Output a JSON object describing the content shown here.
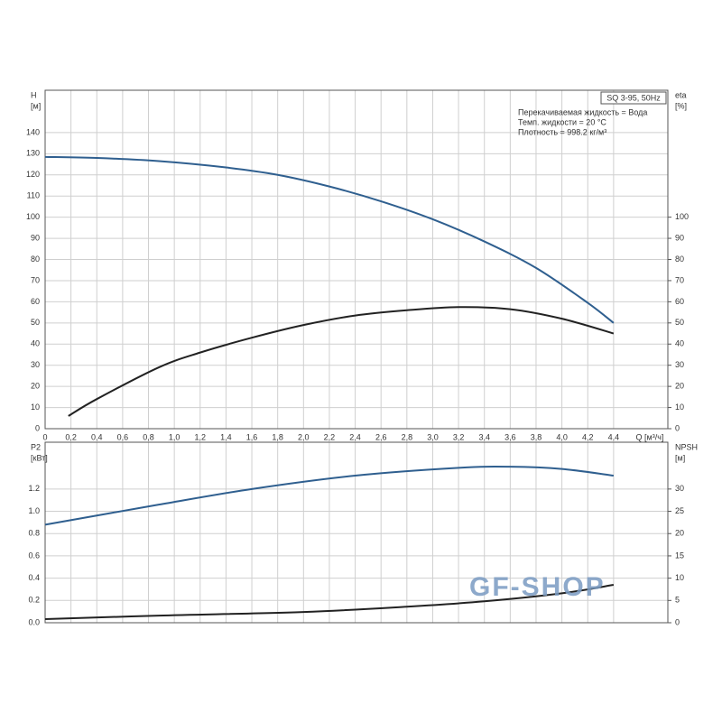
{
  "chart_data": [
    {
      "type": "line",
      "annotations": [
        "SQ 3-95, 50Hz",
        "Перекачиваемая жидкость = Вода",
        "Темп. жидкости = 20 °C",
        "Плотность = 998.2 кг/м³"
      ],
      "x_label": "Q [м³/ч]",
      "y_label": [
        "H",
        "[м]"
      ],
      "y2_label": [
        "eta",
        "[%]"
      ],
      "xlim": [
        0,
        4.82
      ],
      "xticks": [
        0,
        {
          "value": 0.2,
          "label": "0,2"
        },
        {
          "value": 0.4,
          "label": "0,4"
        },
        {
          "value": 0.6,
          "label": "0,6"
        },
        {
          "value": 0.8,
          "label": "0,8"
        },
        {
          "value": 1.0,
          "label": "1,0"
        },
        {
          "value": 1.2,
          "label": "1,2"
        },
        {
          "value": 1.4,
          "label": "1,4"
        },
        {
          "value": 1.6,
          "label": "1,6"
        },
        {
          "value": 1.8,
          "label": "1,8"
        },
        {
          "value": 2.0,
          "label": "2,0"
        },
        {
          "value": 2.2,
          "label": "2,2"
        },
        {
          "value": 2.4,
          "label": "2,4"
        },
        {
          "value": 2.6,
          "label": "2,6"
        },
        {
          "value": 2.8,
          "label": "2,8"
        },
        {
          "value": 3.0,
          "label": "3,0"
        },
        {
          "value": 3.2,
          "label": "3,2"
        },
        {
          "value": 3.4,
          "label": "3,4"
        },
        {
          "value": 3.6,
          "label": "3,6"
        },
        {
          "value": 3.8,
          "label": "3,8"
        },
        {
          "value": 4.0,
          "label": "4,0"
        },
        {
          "value": 4.2,
          "label": "4,2"
        },
        {
          "value": 4.4,
          "label": "4,4"
        }
      ],
      "ylim": [
        0,
        160
      ],
      "yticks": [
        0,
        10,
        20,
        30,
        40,
        50,
        60,
        70,
        80,
        90,
        100,
        110,
        120,
        130,
        140
      ],
      "y2lim": [
        0,
        160
      ],
      "y2ticks": [
        0,
        10,
        20,
        30,
        40,
        50,
        60,
        70,
        80,
        90,
        100
      ],
      "grid": true,
      "series": [
        {
          "color": "#2f5f8f",
          "x": [
            0,
            0.4,
            0.88,
            1.4,
            1.8,
            2.2,
            2.6,
            3.0,
            3.4,
            3.8,
            4.2,
            4.4
          ],
          "values": [
            128.5,
            128,
            126.5,
            123.5,
            120,
            114.5,
            107.5,
            99,
            88.5,
            76,
            59.5,
            50
          ]
        },
        {
          "color": "#222222",
          "axis": "y2",
          "x": [
            0.18,
            0.4,
            0.88,
            1.2,
            1.6,
            2.0,
            2.4,
            2.8,
            3.2,
            3.6,
            4.0,
            4.4
          ],
          "values": [
            6,
            14,
            29,
            36,
            43,
            49,
            53.5,
            56,
            57.5,
            56.5,
            52,
            45
          ]
        }
      ]
    },
    {
      "type": "line",
      "y_label": [
        "P2",
        "[кВт]"
      ],
      "y2_label": [
        "NPSH",
        "[м]"
      ],
      "xlim": [
        0,
        4.82
      ],
      "ylim": [
        0,
        1.62
      ],
      "yticks": [
        {
          "value": 0,
          "label": "0.0"
        },
        0.2,
        0.4,
        0.6,
        0.8,
        {
          "value": 1.0,
          "label": "1.0"
        },
        1.2
      ],
      "y2lim": [
        0,
        40.5
      ],
      "y2ticks": [
        0,
        5,
        10,
        15,
        20,
        25,
        30
      ],
      "grid": true,
      "series": [
        {
          "color": "#2f5f8f",
          "x": [
            0,
            0.88,
            1.6,
            2.4,
            3.2,
            3.6,
            4.0,
            4.4
          ],
          "values": [
            0.88,
            1.06,
            1.2,
            1.32,
            1.39,
            1.4,
            1.38,
            1.32
          ]
        },
        {
          "color": "#222222",
          "axis": "y2",
          "x": [
            0,
            0.88,
            2.0,
            2.8,
            3.4,
            4.0,
            4.4
          ],
          "values": [
            0.8,
            1.6,
            2.4,
            3.6,
            4.8,
            6.6,
            8.5
          ]
        }
      ]
    }
  ],
  "watermark": "GF-SHOP"
}
